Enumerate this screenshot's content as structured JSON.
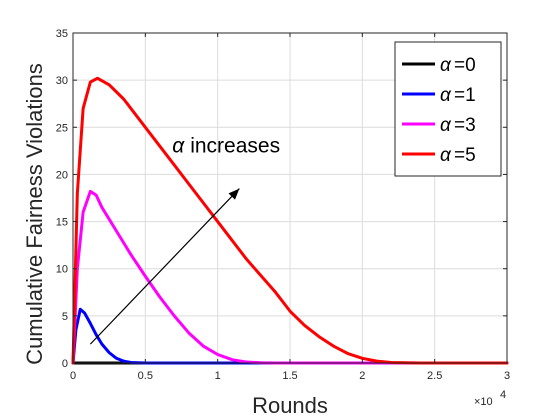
{
  "chart_data": {
    "type": "line",
    "title": "",
    "xlabel": "Rounds",
    "ylabel": "Cumulative Fairness Violations",
    "xlim": [
      0,
      30000
    ],
    "ylim": [
      0,
      35
    ],
    "x_tick_values": [
      0,
      5000,
      10000,
      15000,
      20000,
      25000,
      30000
    ],
    "x_tick_labels": [
      "0",
      "0.5",
      "1",
      "1.5",
      "2",
      "2.5",
      "3"
    ],
    "x_exponent_label": "×10",
    "x_exponent_power": "4",
    "y_tick_values": [
      0,
      5,
      10,
      15,
      20,
      25,
      30,
      35
    ],
    "y_tick_labels": [
      "0",
      "5",
      "10",
      "15",
      "20",
      "25",
      "30",
      "35"
    ],
    "grid": true,
    "legend_position": "top-right",
    "series": [
      {
        "name": "=0",
        "greek": "α",
        "color": "#000000",
        "x": [
          0,
          5000,
          10000,
          20000,
          30000
        ],
        "y": [
          0,
          0,
          0,
          0,
          0
        ]
      },
      {
        "name": "=1",
        "greek": "α",
        "color": "#0000ff",
        "x": [
          0,
          200,
          500,
          800,
          1200,
          1600,
          2000,
          2500,
          3000,
          3500,
          4000,
          5000,
          7000,
          30000
        ],
        "y": [
          0,
          3.5,
          5.7,
          5.3,
          4.2,
          3.0,
          2.0,
          1.1,
          0.5,
          0.2,
          0.05,
          0,
          0,
          0
        ]
      },
      {
        "name": "=3",
        "greek": "α",
        "color": "#ff00ff",
        "x": [
          0,
          300,
          700,
          1200,
          1600,
          2000,
          3000,
          4000,
          5000,
          6000,
          7000,
          8000,
          9000,
          10000,
          11000,
          12000,
          13000,
          14000,
          30000
        ],
        "y": [
          0,
          10,
          16,
          18.2,
          17.8,
          16.5,
          14.0,
          11.5,
          9.2,
          7.0,
          5.0,
          3.2,
          1.8,
          0.9,
          0.35,
          0.1,
          0.03,
          0,
          0
        ]
      },
      {
        "name": "=5",
        "greek": "α",
        "color": "#ff0000",
        "x": [
          0,
          300,
          700,
          1200,
          1700,
          2500,
          3500,
          5000,
          6500,
          8000,
          10000,
          12000,
          14000,
          15000,
          16000,
          17000,
          18000,
          19000,
          20000,
          21000,
          22000,
          24000,
          30000
        ],
        "y": [
          0,
          18,
          27,
          29.8,
          30.2,
          29.5,
          28.0,
          25.0,
          22.0,
          19.0,
          15.0,
          11.0,
          7.5,
          5.5,
          4.0,
          2.8,
          1.8,
          1.0,
          0.5,
          0.2,
          0.05,
          0,
          0
        ]
      }
    ],
    "annotation": {
      "greek": "α",
      "text": "increases",
      "arrow_from": [
        1200,
        2
      ],
      "arrow_to": [
        11500,
        18.5
      ],
      "text_at": [
        9000,
        22.3
      ]
    }
  }
}
